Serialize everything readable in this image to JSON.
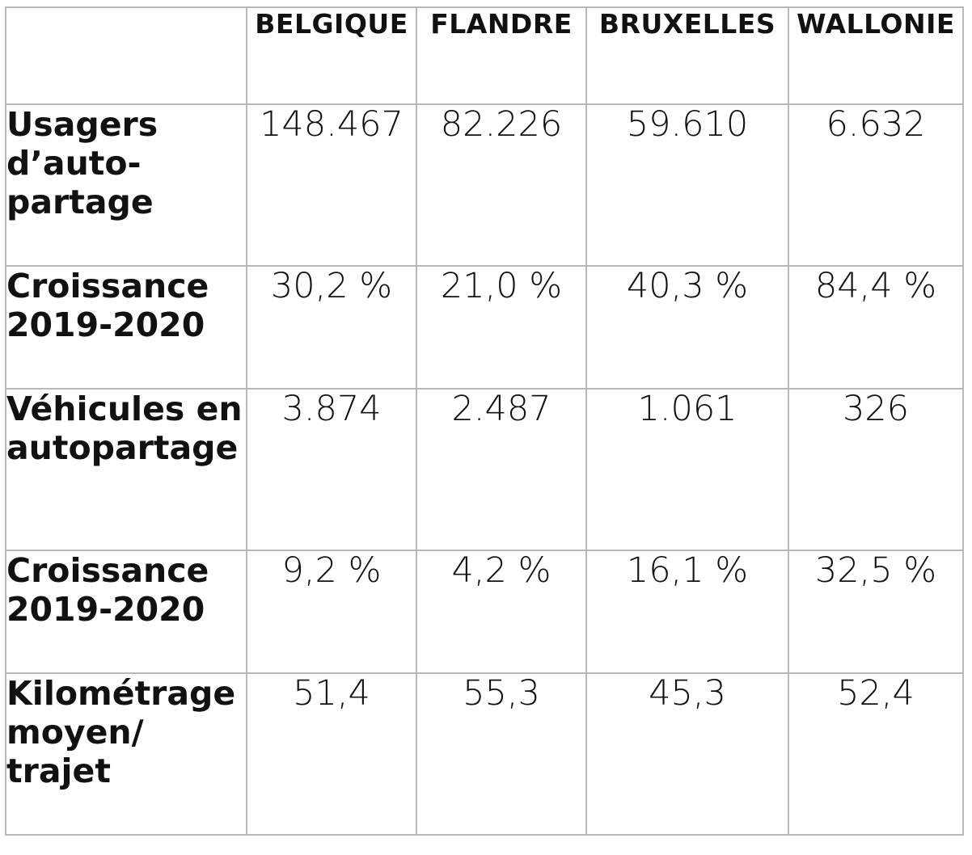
{
  "chart_data": {
    "type": "table",
    "columns": [
      "BELGIQUE",
      "FLANDRE",
      "BRUXELLES",
      "WALLONIE"
    ],
    "rows": [
      {
        "label": "Usagers d’auto-partage",
        "values": [
          "148.467",
          "82.226",
          "59.610",
          "6.632"
        ]
      },
      {
        "label": "Croissance 2019-2020",
        "values": [
          "30,2 %",
          "21,0 %",
          "40,3 %",
          "84,4 %"
        ]
      },
      {
        "label": "Véhicules en autopartage",
        "values": [
          "3.874",
          "2.487",
          "1.061",
          "326"
        ]
      },
      {
        "label": "Croissance 2019-2020",
        "values": [
          "9,2 %",
          "4,2 %",
          "16,1 %",
          "32,5 %"
        ]
      },
      {
        "label": "Kilométrage moyen/ trajet",
        "values": [
          "51,4",
          "55,3",
          "45,3",
          "52,4"
        ]
      }
    ]
  }
}
